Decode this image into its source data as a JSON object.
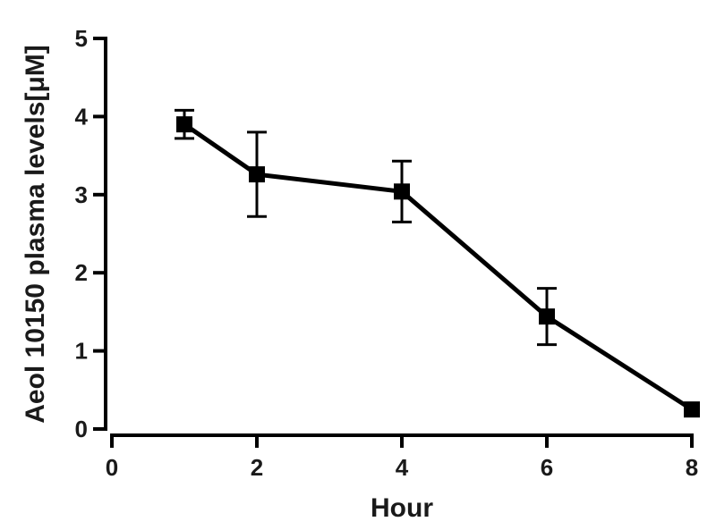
{
  "chart_data": {
    "type": "line",
    "title": "",
    "xlabel": "Hour",
    "ylabel": "Aeol 10150 plasma levels[μM]",
    "xlim": [
      0,
      8
    ],
    "ylim": [
      0,
      5
    ],
    "x_ticks": [
      0,
      2,
      4,
      6,
      8
    ],
    "y_ticks": [
      0,
      1,
      2,
      3,
      4,
      5
    ],
    "grid": false,
    "legend": "none",
    "series": [
      {
        "color": "#000000",
        "marker": "square",
        "points": [
          {
            "x": 1,
            "y": 3.9,
            "err": 0.18
          },
          {
            "x": 2,
            "y": 3.26,
            "err": 0.54
          },
          {
            "x": 4,
            "y": 3.04,
            "err": 0.39
          },
          {
            "x": 6,
            "y": 1.44,
            "err": 0.36
          },
          {
            "x": 8,
            "y": 0.25,
            "err": 0.0
          }
        ]
      }
    ]
  }
}
